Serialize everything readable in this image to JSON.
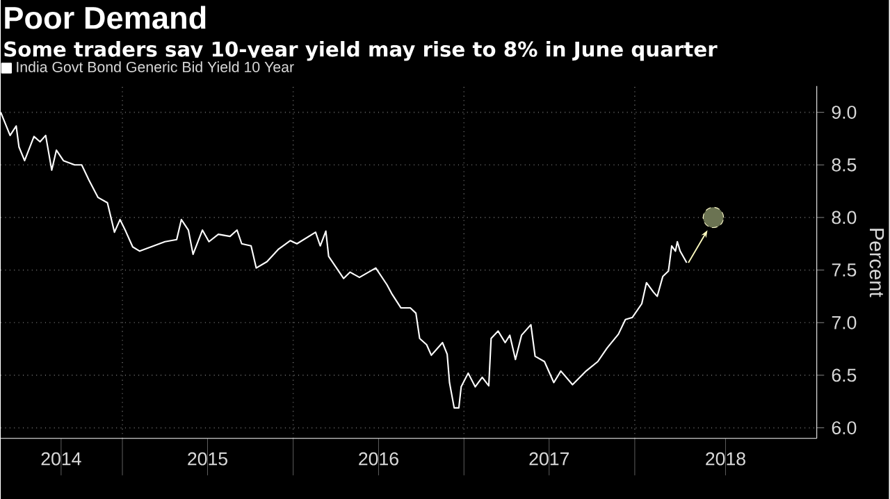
{
  "chart_data": {
    "type": "line",
    "title": "Poor Demand",
    "subtitle": "Some traders say 10-year yield may rise to 8% in June quarter",
    "ylabel": "Percent",
    "xlim": [
      "2014-04-16",
      "2019-01-25"
    ],
    "xticks": [
      {
        "value": "2015-01-01",
        "label": null
      },
      {
        "value": "2016-01-01",
        "label": null
      },
      {
        "value": "2017-01-01",
        "label": null
      },
      {
        "value": "2018-01-01",
        "label": null
      },
      {
        "value": "2014-08-23",
        "label": "2014"
      },
      {
        "value": "2015-07-02",
        "label": "2015"
      },
      {
        "value": "2016-07-02",
        "label": "2016"
      },
      {
        "value": "2017-07-02",
        "label": "2017"
      },
      {
        "value": "2018-07-14",
        "label": "2018"
      }
    ],
    "ylim": [
      5.9,
      9.25
    ],
    "yticks": [
      {
        "value": 6,
        "label": "6.0"
      },
      6.5,
      {
        "value": 7,
        "label": "7.0"
      },
      7.5,
      {
        "value": 8,
        "label": "8.0"
      },
      8.5,
      {
        "value": 9,
        "label": "9.0"
      }
    ],
    "grid": true,
    "legend": "top left",
    "series": [
      {
        "name": "India Govt Bond Generic Bid Yield 10 Year",
        "color": "#ffffff",
        "x": [
          "2014-04-16",
          "2014-05-06",
          "2014-05-19",
          "2014-05-25",
          "2014-06-06",
          "2014-06-26",
          "2014-07-09",
          "2014-07-21",
          "2014-08-03",
          "2014-08-13",
          "2014-08-28",
          "2014-09-21",
          "2014-10-06",
          "2014-10-21",
          "2014-11-10",
          "2014-11-30",
          "2014-12-15",
          "2014-12-27",
          "2015-01-08",
          "2015-01-23",
          "2015-02-07",
          "2015-03-09",
          "2015-04-02",
          "2015-04-27",
          "2015-05-07",
          "2015-05-22",
          "2015-06-01",
          "2015-06-21",
          "2015-07-05",
          "2015-07-25",
          "2015-08-19",
          "2015-09-03",
          "2015-09-13",
          "2015-10-03",
          "2015-10-14",
          "2015-11-06",
          "2015-12-01",
          "2015-12-26",
          "2016-01-09",
          "2016-02-18",
          "2016-02-28",
          "2016-03-11",
          "2016-03-17",
          "2016-04-18",
          "2016-05-02",
          "2016-05-22",
          "2016-06-26",
          "2016-07-20",
          "2016-07-31",
          "2016-08-19",
          "2016-09-08",
          "2016-09-20",
          "2016-09-28",
          "2016-10-13",
          "2016-10-23",
          "2016-11-16",
          "2016-11-26",
          "2016-12-01",
          "2016-12-11",
          "2016-12-21",
          "2016-12-26",
          "2017-01-10",
          "2017-01-25",
          "2017-02-09",
          "2017-02-23",
          "2017-02-28",
          "2017-03-15",
          "2017-03-30",
          "2017-04-09",
          "2017-04-21",
          "2017-05-04",
          "2017-05-24",
          "2017-06-02",
          "2017-06-22",
          "2017-07-12",
          "2017-07-27",
          "2017-08-21",
          "2017-09-19",
          "2017-10-14",
          "2017-11-03",
          "2017-11-27",
          "2017-12-12",
          "2017-12-27",
          "2018-01-16",
          "2018-01-26",
          "2018-02-10",
          "2018-02-18",
          "2018-03-02",
          "2018-03-14",
          "2018-03-21",
          "2018-03-29",
          "2018-04-02",
          "2018-04-08",
          "2018-04-22"
        ],
        "values": [
          9.0,
          8.78,
          8.87,
          8.67,
          8.54,
          8.77,
          8.72,
          8.78,
          8.45,
          8.64,
          8.54,
          8.5,
          8.5,
          8.36,
          8.19,
          8.14,
          7.86,
          7.98,
          7.87,
          7.72,
          7.68,
          7.73,
          7.77,
          7.79,
          7.98,
          7.88,
          7.65,
          7.88,
          7.77,
          7.84,
          7.82,
          7.88,
          7.75,
          7.73,
          7.52,
          7.58,
          7.7,
          7.78,
          7.75,
          7.86,
          7.73,
          7.87,
          7.63,
          7.42,
          7.48,
          7.43,
          7.52,
          7.36,
          7.27,
          7.14,
          7.14,
          7.09,
          6.85,
          6.79,
          6.69,
          6.81,
          6.7,
          6.43,
          6.19,
          6.19,
          6.39,
          6.52,
          6.39,
          6.48,
          6.4,
          6.85,
          6.92,
          6.81,
          6.88,
          6.65,
          6.88,
          6.98,
          6.68,
          6.63,
          6.43,
          6.54,
          6.41,
          6.54,
          6.63,
          6.76,
          6.89,
          7.03,
          7.05,
          7.18,
          7.38,
          7.29,
          7.25,
          7.44,
          7.49,
          7.73,
          7.68,
          7.77,
          7.68,
          7.57
        ]
      },
      {
        "type": "scatter",
        "color": "#6b7352",
        "marker": "circle",
        "x": [
          "2018-06-18"
        ],
        "values": [
          8.0
        ]
      }
    ]
  }
}
